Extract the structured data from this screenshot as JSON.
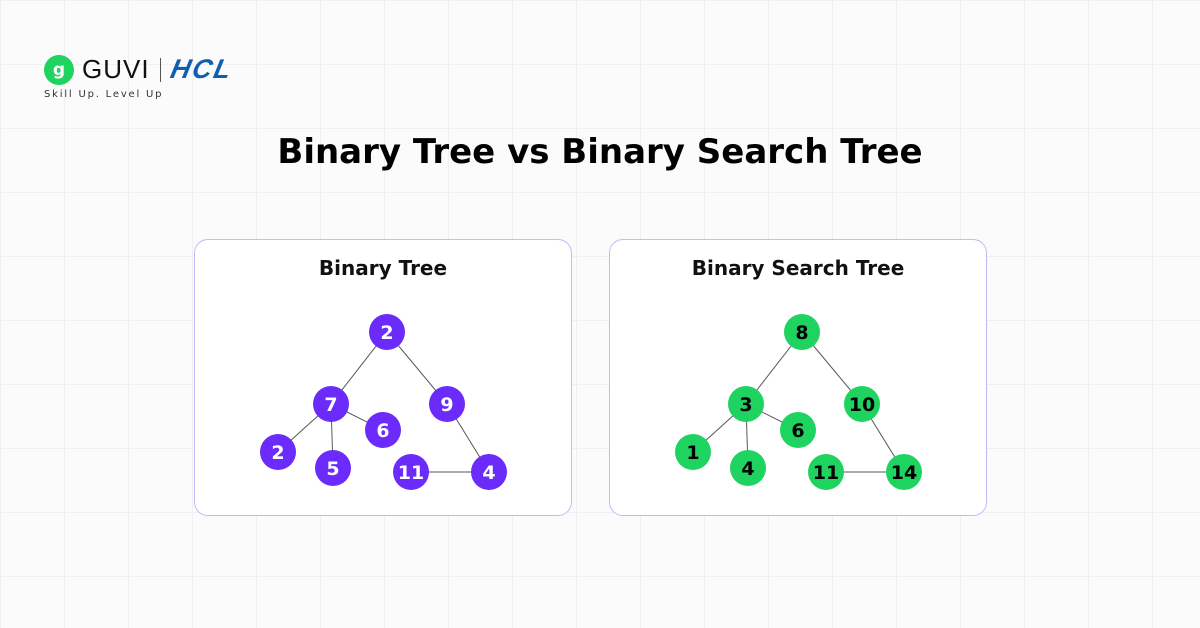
{
  "logo": {
    "brand": "GUVI",
    "partner": "HCL",
    "tagline": "Skill Up. Level Up",
    "icon": "guvi-g-icon"
  },
  "title": "Binary Tree vs Binary Search Tree",
  "colors": {
    "binary_tree": "#6a2bfb",
    "bst": "#1ed35f",
    "card_border": "#c8b8f5"
  },
  "trees": [
    {
      "label": "Binary Tree",
      "node_color": "#6a2bfb",
      "text_color": "#ffffff",
      "nodes": [
        "2",
        "7",
        "9",
        "6",
        "2",
        "5",
        "11",
        "4"
      ],
      "edges": [
        [
          0,
          1
        ],
        [
          0,
          2
        ],
        [
          1,
          3
        ],
        [
          1,
          4
        ],
        [
          1,
          5
        ],
        [
          2,
          7
        ],
        [
          6,
          7
        ]
      ]
    },
    {
      "label": "Binary Search Tree",
      "node_color": "#1ed35f",
      "text_color": "#000000",
      "nodes": [
        "8",
        "3",
        "10",
        "6",
        "1",
        "4",
        "11",
        "14"
      ],
      "edges": [
        [
          0,
          1
        ],
        [
          0,
          2
        ],
        [
          1,
          3
        ],
        [
          1,
          4
        ],
        [
          1,
          5
        ],
        [
          2,
          7
        ],
        [
          6,
          7
        ]
      ]
    }
  ]
}
